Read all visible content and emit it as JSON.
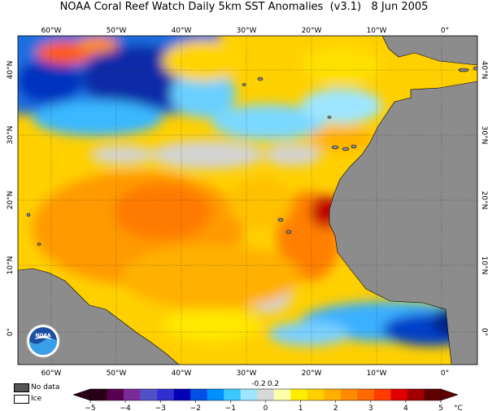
{
  "title": "NOAA Coral Reef Watch Daily 5km SST Anomalies  (v3.1)   8 Jun 2005",
  "map": {
    "top_labels": [
      "60°W",
      "50°W",
      "40°W",
      "30°W",
      "20°W",
      "10°W",
      "0°"
    ],
    "bottom_labels": [
      "60°W",
      "50°W",
      "40°W",
      "30°W",
      "20°W",
      "10°W",
      "0°"
    ],
    "left_labels": [
      "40°N",
      "30°N",
      "20°N",
      "10°N",
      "0°"
    ],
    "right_labels": [
      "40°N",
      "30°N",
      "20°N",
      "10°N",
      "0°"
    ],
    "land_color": "#8c8c8c",
    "no_data_color": "#d3d3d3"
  },
  "legend": {
    "no_data_label": "No data",
    "ice_label": "Ice",
    "no_data_color": "#555555",
    "ice_color": "#ffffff"
  },
  "colorbar": {
    "tick_labels": [
      "−5",
      "−4",
      "−3",
      "−2",
      "−1",
      "0",
      "1",
      "2",
      "3",
      "4",
      "5"
    ],
    "small_labels": [
      "-0.2",
      "0.2"
    ],
    "unit": "°C",
    "colors": [
      "#2a0018",
      "#5a0050",
      "#7a2a9a",
      "#5050c8",
      "#3030d0",
      "#0000b4",
      "#0050e6",
      "#0090ff",
      "#3cc8ff",
      "#9ee6ff",
      "#d8d8d8",
      "#ffffaa",
      "#ffee00",
      "#ffd000",
      "#ffb000",
      "#ff8c00",
      "#ff6a00",
      "#ff3c00",
      "#e00000",
      "#a00000",
      "#600000"
    ]
  },
  "logo": {
    "text": "NOAA"
  }
}
